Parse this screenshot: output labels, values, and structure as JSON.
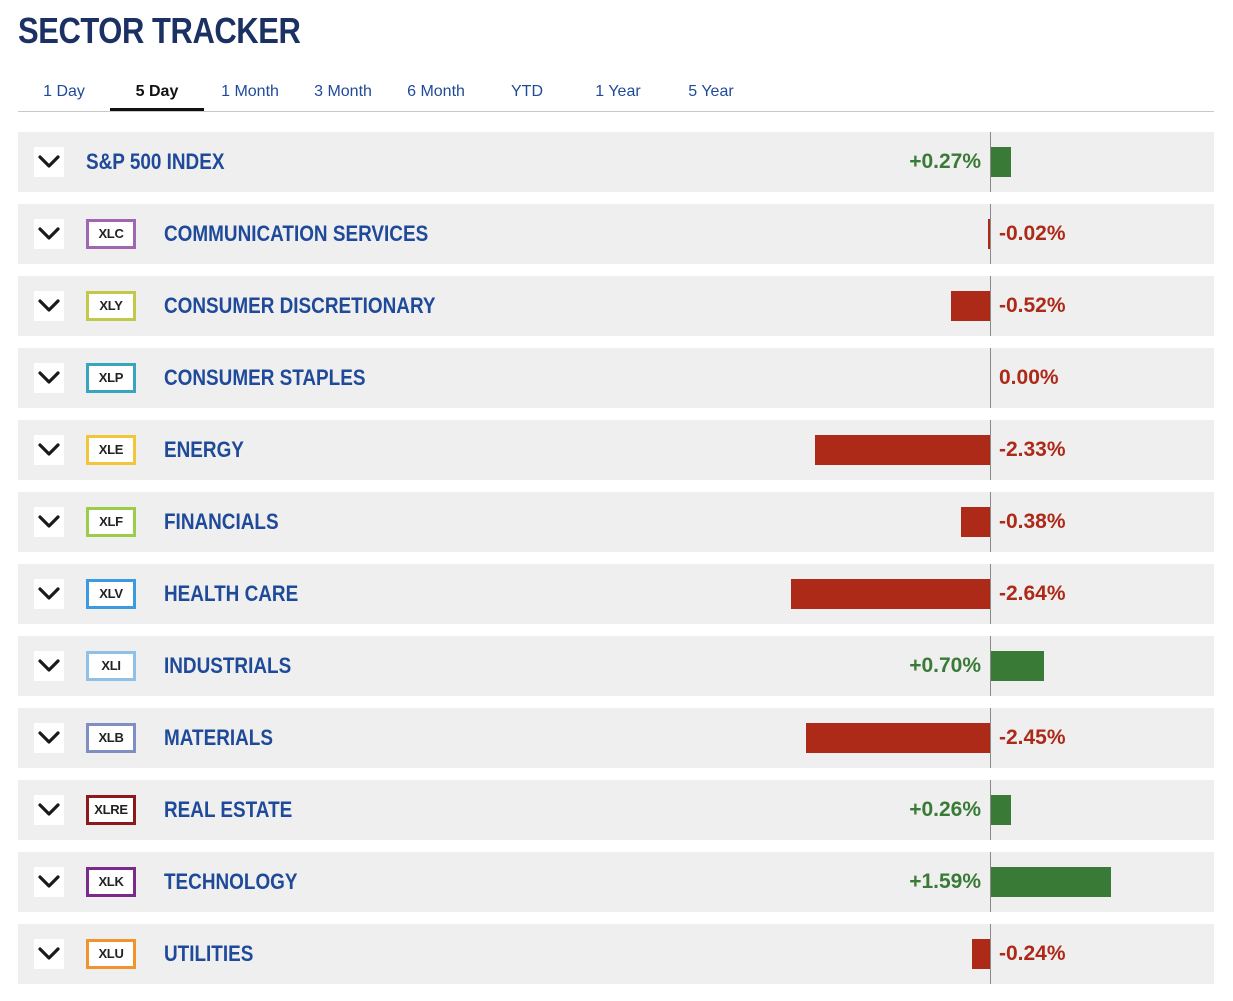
{
  "title": "SECTOR TRACKER",
  "tabs": [
    {
      "label": "1 Day",
      "active": false
    },
    {
      "label": "5 Day",
      "active": true
    },
    {
      "label": "1 Month",
      "active": false
    },
    {
      "label": "3 Month",
      "active": false
    },
    {
      "label": "6 Month",
      "active": false
    },
    {
      "label": "YTD",
      "active": false
    },
    {
      "label": "1 Year",
      "active": false
    },
    {
      "label": "5 Year",
      "active": false
    }
  ],
  "colors": {
    "positive": "#3a7a37",
    "negative": "#ad2918",
    "name": "#1f4a9a",
    "title": "#1b3163"
  },
  "chart_data": {
    "type": "bar",
    "orientation": "horizontal",
    "categories": [
      "S&P 500 INDEX",
      "COMMUNICATION SERVICES",
      "CONSUMER DISCRETIONARY",
      "CONSUMER STAPLES",
      "ENERGY",
      "FINANCIALS",
      "HEALTH CARE",
      "INDUSTRIALS",
      "MATERIALS",
      "REAL ESTATE",
      "TECHNOLOGY",
      "UTILITIES"
    ],
    "values": [
      0.27,
      -0.02,
      -0.52,
      0.0,
      -2.33,
      -0.38,
      -2.64,
      0.7,
      -2.45,
      0.26,
      1.59,
      -0.24
    ]
  },
  "rows": [
    {
      "name": "S&P 500 INDEX",
      "ticker": null,
      "ticker_color": null,
      "value": 0.27,
      "label": "+0.27%"
    },
    {
      "name": "COMMUNICATION SERVICES",
      "ticker": "XLC",
      "ticker_color": "#a066b3",
      "value": -0.02,
      "label": "-0.02%"
    },
    {
      "name": "CONSUMER DISCRETIONARY",
      "ticker": "XLY",
      "ticker_color": "#c4c84a",
      "value": -0.52,
      "label": "-0.52%"
    },
    {
      "name": "CONSUMER STAPLES",
      "ticker": "XLP",
      "ticker_color": "#3aa3bd",
      "value": 0.0,
      "label": "0.00%"
    },
    {
      "name": "ENERGY",
      "ticker": "XLE",
      "ticker_color": "#f2c53a",
      "value": -2.33,
      "label": "-2.33%"
    },
    {
      "name": "FINANCIALS",
      "ticker": "XLF",
      "ticker_color": "#9ccd4a",
      "value": -0.38,
      "label": "-0.38%"
    },
    {
      "name": "HEALTH CARE",
      "ticker": "XLV",
      "ticker_color": "#3c9be0",
      "value": -2.64,
      "label": "-2.64%"
    },
    {
      "name": "INDUSTRIALS",
      "ticker": "XLI",
      "ticker_color": "#8fc0e8",
      "value": 0.7,
      "label": "+0.70%"
    },
    {
      "name": "MATERIALS",
      "ticker": "XLB",
      "ticker_color": "#7f8fc2",
      "value": -2.45,
      "label": "-2.45%"
    },
    {
      "name": "REAL ESTATE",
      "ticker": "XLRE",
      "ticker_color": "#8b1a1a",
      "value": 0.26,
      "label": "+0.26%"
    },
    {
      "name": "TECHNOLOGY",
      "ticker": "XLK",
      "ticker_color": "#7a2a8a",
      "value": 1.59,
      "label": "+1.59%"
    },
    {
      "name": "UTILITIES",
      "ticker": "XLU",
      "ticker_color": "#f0952e",
      "value": -0.24,
      "label": "-0.24%"
    }
  ]
}
